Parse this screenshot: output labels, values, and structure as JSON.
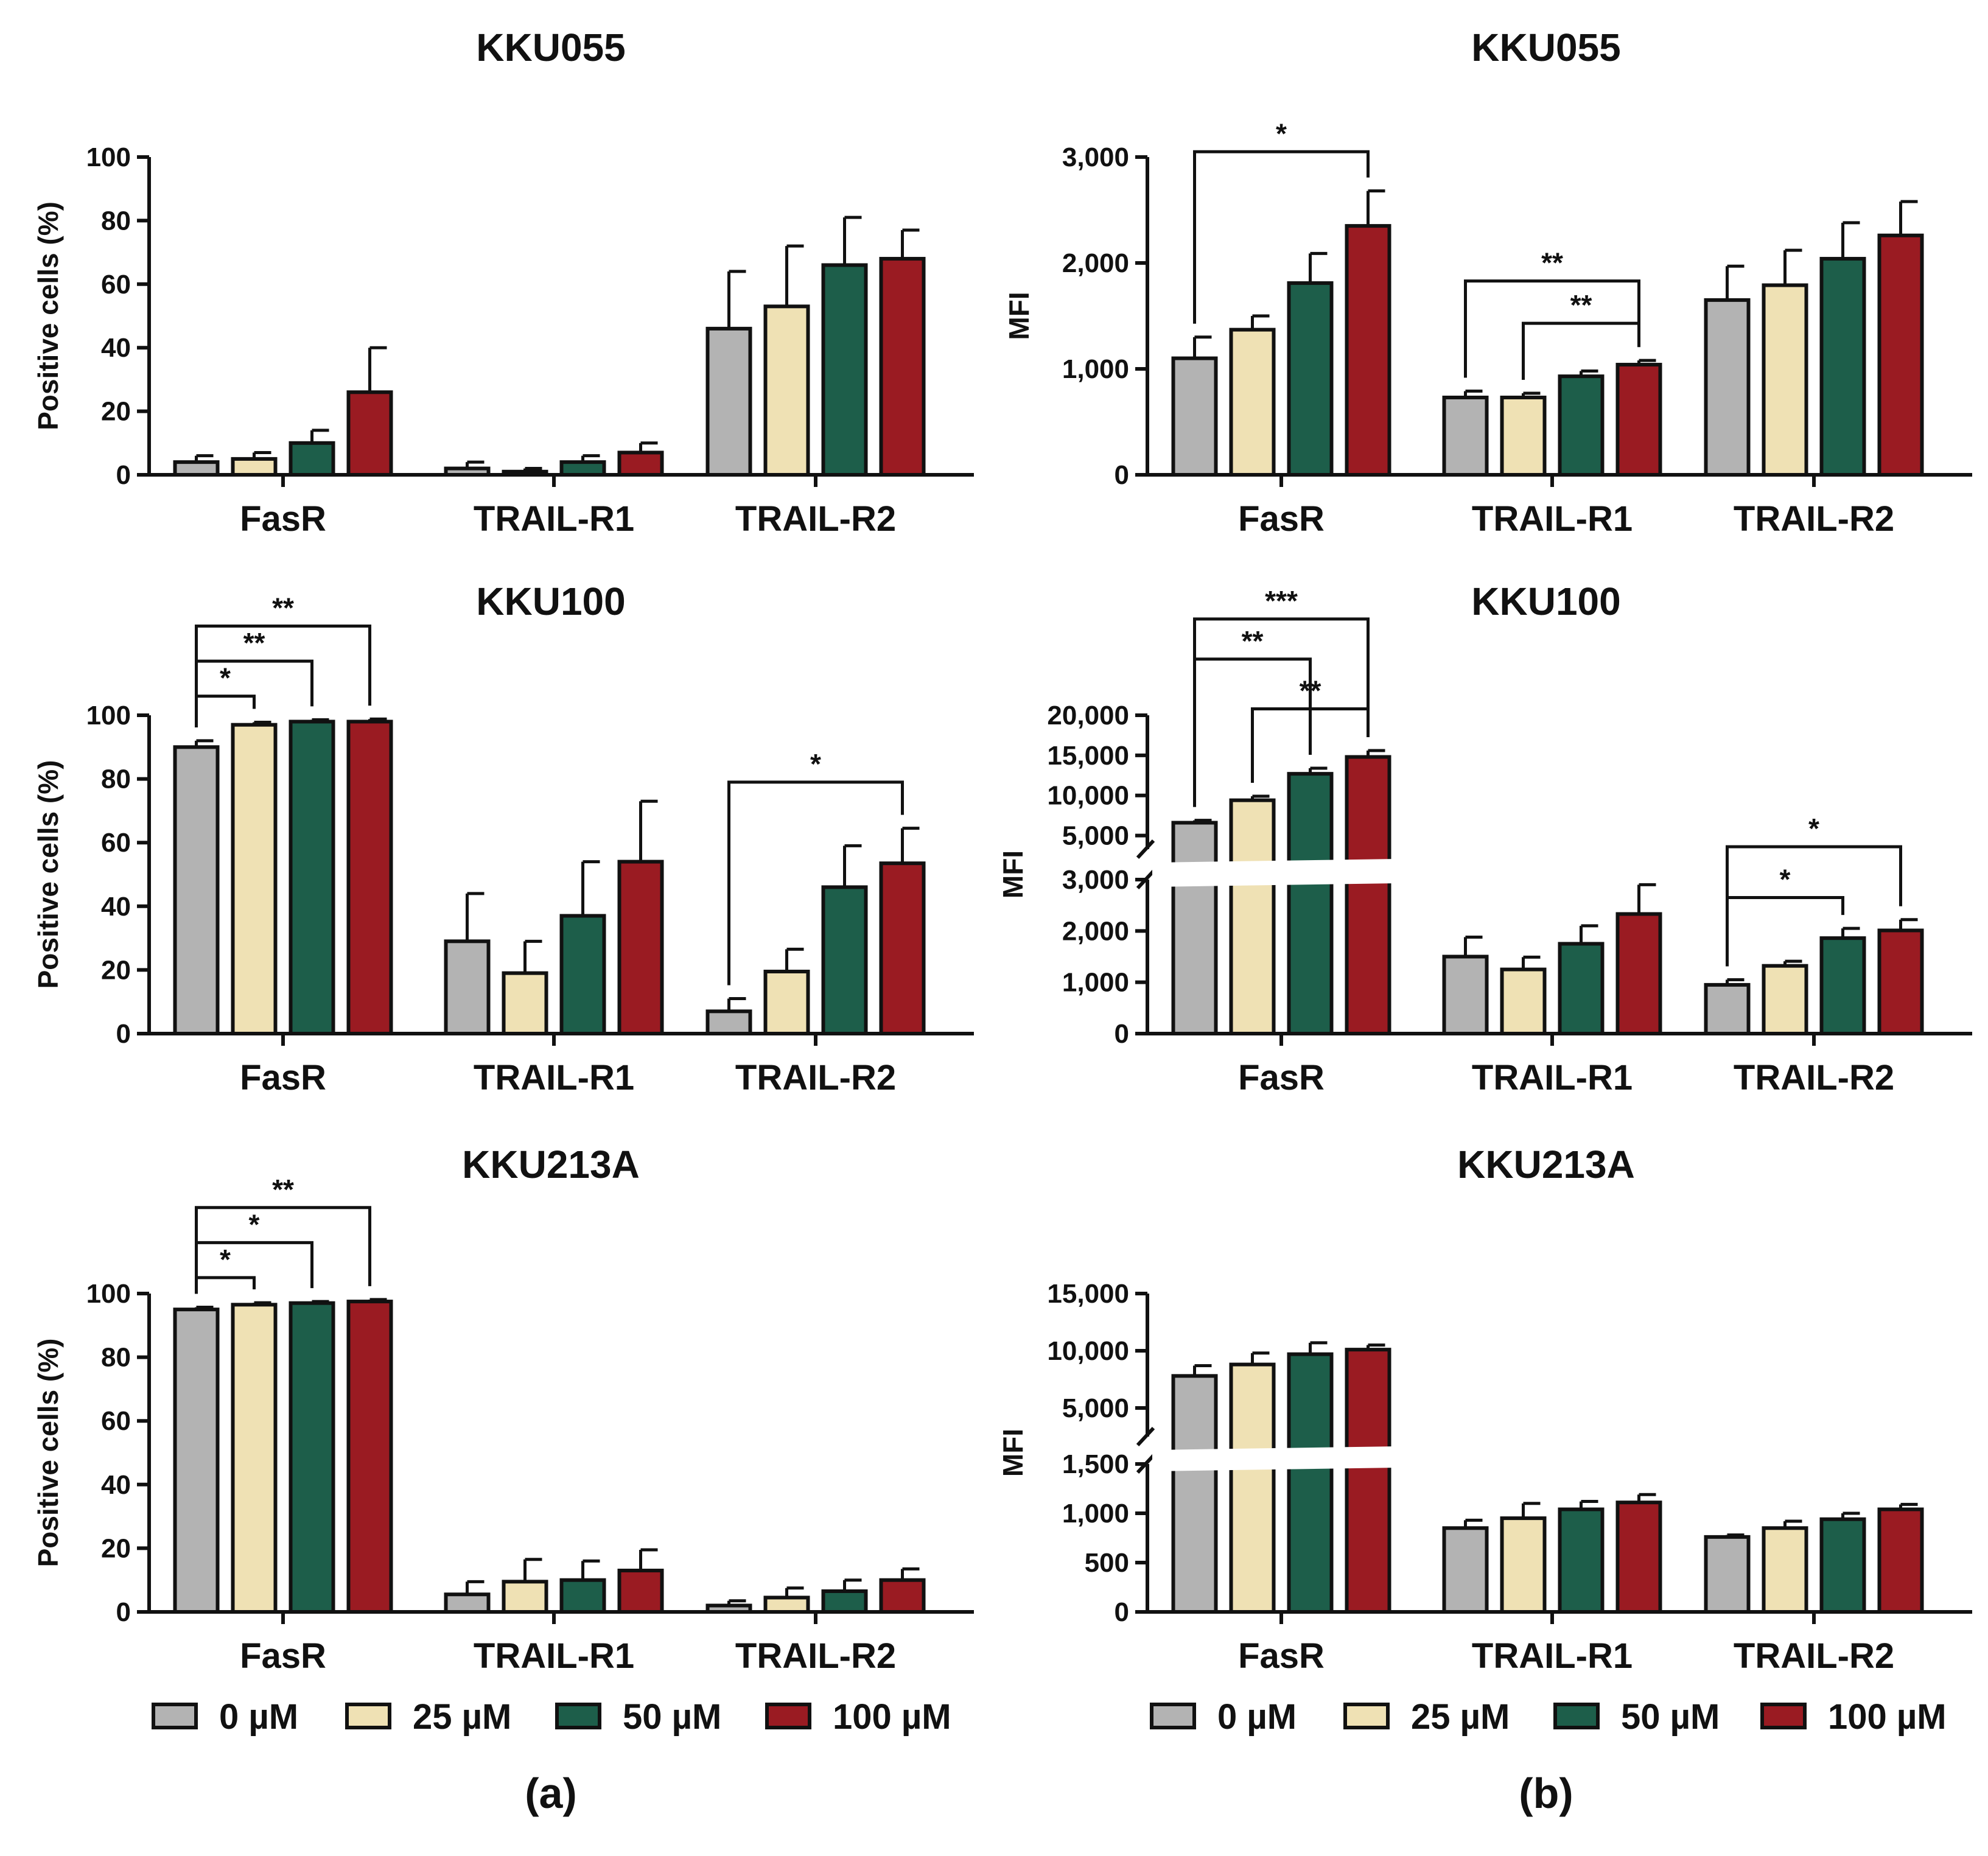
{
  "series": [
    {
      "name": "0 µM",
      "color": "#b3b3b3"
    },
    {
      "name": "25 µM",
      "color": "#efe1b4"
    },
    {
      "name": "50 µM",
      "color": "#1d5e4a"
    },
    {
      "name": "100 µM",
      "color": "#9a1b22"
    }
  ],
  "panel_labels": [
    "(a)",
    "(b)"
  ],
  "chart_data": [
    {
      "id": "a-kku055",
      "type": "bar",
      "title": "KKU055",
      "ylabel": "Positive cells (%)",
      "categories": [
        "FasR",
        "TRAIL-R1",
        "TRAIL-R2"
      ],
      "ylim": [
        0,
        100
      ],
      "yticks": [
        0,
        20,
        40,
        60,
        80,
        100
      ],
      "yticklabels": [
        "0",
        "20",
        "40",
        "60",
        "80",
        "100"
      ],
      "values": [
        [
          4,
          5,
          10,
          26
        ],
        [
          2,
          1,
          4,
          7
        ],
        [
          46,
          53,
          66,
          68
        ]
      ],
      "errors": [
        [
          2,
          2,
          4,
          14
        ],
        [
          2,
          1,
          2,
          3
        ],
        [
          18,
          19,
          15,
          9
        ]
      ],
      "significance": []
    },
    {
      "id": "a-kku100",
      "type": "bar",
      "title": "KKU100",
      "ylabel": "Positive cells (%)",
      "categories": [
        "FasR",
        "TRAIL-R1",
        "TRAIL-R2"
      ],
      "ylim": [
        0,
        100
      ],
      "yticks": [
        0,
        20,
        40,
        60,
        80,
        100
      ],
      "yticklabels": [
        "0",
        "20",
        "40",
        "60",
        "80",
        "100"
      ],
      "values": [
        [
          90,
          97,
          98,
          98
        ],
        [
          29,
          19,
          37,
          54
        ],
        [
          7,
          19.5,
          46,
          53.5
        ]
      ],
      "errors": [
        [
          2,
          0.8,
          0.6,
          0.8
        ],
        [
          15,
          10,
          17,
          19
        ],
        [
          4,
          7,
          13,
          11
        ]
      ],
      "significance": [
        {
          "cat": 0,
          "from": 0,
          "to": 1,
          "label": "*",
          "y": 106
        },
        {
          "cat": 0,
          "from": 0,
          "to": 2,
          "label": "**",
          "y": 117
        },
        {
          "cat": 0,
          "from": 0,
          "to": 3,
          "label": "**",
          "y": 128
        },
        {
          "cat": 2,
          "from": 0,
          "to": 3,
          "label": "*",
          "y": 79
        }
      ]
    },
    {
      "id": "a-kku213a",
      "type": "bar",
      "title": "KKU213A",
      "ylabel": "Positive cells (%)",
      "categories": [
        "FasR",
        "TRAIL-R1",
        "TRAIL-R2"
      ],
      "ylim": [
        0,
        100
      ],
      "yticks": [
        0,
        20,
        40,
        60,
        80,
        100
      ],
      "yticklabels": [
        "0",
        "20",
        "40",
        "60",
        "80",
        "100"
      ],
      "values": [
        [
          95,
          96.5,
          97,
          97.5
        ],
        [
          5.5,
          9.5,
          10,
          13
        ],
        [
          2,
          4.5,
          6.5,
          10
        ]
      ],
      "errors": [
        [
          0.7,
          0.6,
          0.5,
          0.6
        ],
        [
          4,
          7,
          6,
          6.5
        ],
        [
          1.5,
          3,
          3.5,
          3.5
        ]
      ],
      "significance": [
        {
          "cat": 0,
          "from": 0,
          "to": 1,
          "label": "*",
          "y": 105
        },
        {
          "cat": 0,
          "from": 0,
          "to": 2,
          "label": "*",
          "y": 116
        },
        {
          "cat": 0,
          "from": 0,
          "to": 3,
          "label": "**",
          "y": 127
        }
      ]
    },
    {
      "id": "b-kku055",
      "type": "bar",
      "title": "KKU055",
      "ylabel": "MFI",
      "categories": [
        "FasR",
        "TRAIL-R1",
        "TRAIL-R2"
      ],
      "ylim": [
        0,
        3000
      ],
      "yticks": [
        0,
        1000,
        2000,
        3000
      ],
      "yticklabels": [
        "0",
        "1,000",
        "2,000",
        "3,000"
      ],
      "values": [
        [
          1100,
          1370,
          1810,
          2350
        ],
        [
          730,
          730,
          930,
          1040
        ],
        [
          1650,
          1790,
          2040,
          2260
        ]
      ],
      "errors": [
        [
          200,
          130,
          280,
          330
        ],
        [
          60,
          40,
          50,
          40
        ],
        [
          320,
          330,
          340,
          320
        ]
      ],
      "significance": [
        {
          "cat": 0,
          "from": 0,
          "to": 3,
          "label": "*",
          "y": 3050
        },
        {
          "cat": 1,
          "from": 0,
          "to": 3,
          "label": "**",
          "y": 1830
        },
        {
          "cat": 1,
          "from": 1,
          "to": 3,
          "label": "**",
          "y": 1430
        }
      ]
    },
    {
      "id": "b-kku100",
      "type": "bar",
      "title": "KKU100",
      "ylabel": "MFI",
      "categories": [
        "FasR",
        "TRAIL-R1",
        "TRAIL-R2"
      ],
      "broken_axis": {
        "lower_max": 3000,
        "upper_min": 3300,
        "upper_max": 20000
      },
      "yticks_lower": [
        0,
        1000,
        2000,
        3000
      ],
      "yticklabels_lower": [
        "0",
        "1,000",
        "2,000",
        "3,000"
      ],
      "yticks_upper": [
        5000,
        10000,
        15000,
        20000
      ],
      "yticklabels_upper": [
        "5,000",
        "10,000",
        "15,000",
        "20,000"
      ],
      "values": [
        [
          6600,
          9400,
          12700,
          14800
        ],
        [
          1500,
          1250,
          1750,
          2330
        ],
        [
          950,
          1320,
          1860,
          2010
        ]
      ],
      "errors": [
        [
          300,
          500,
          700,
          800
        ],
        [
          380,
          240,
          350,
          570
        ],
        [
          100,
          90,
          190,
          210
        ]
      ],
      "significance": [
        {
          "cat": 0,
          "from": 0,
          "to": 2,
          "label": "**",
          "y": 27000
        },
        {
          "cat": 0,
          "from": 0,
          "to": 3,
          "label": "***",
          "y": 32000
        },
        {
          "cat": 0,
          "from": 1,
          "to": 3,
          "label": "**",
          "y": 20800
        },
        {
          "cat": 2,
          "from": 0,
          "to": 2,
          "label": "*",
          "y": 2650
        },
        {
          "cat": 2,
          "from": 0,
          "to": 3,
          "label": "*",
          "y": 3600
        }
      ]
    },
    {
      "id": "b-kku213a",
      "type": "bar",
      "title": "KKU213A",
      "ylabel": "MFI",
      "categories": [
        "FasR",
        "TRAIL-R1",
        "TRAIL-R2"
      ],
      "broken_axis": {
        "lower_max": 1500,
        "upper_min": 2500,
        "upper_max": 15000
      },
      "yticks_lower": [
        0,
        500,
        1000,
        1500
      ],
      "yticklabels_lower": [
        "0",
        "500",
        "1,000",
        "1,500"
      ],
      "yticks_upper": [
        5000,
        10000,
        15000
      ],
      "yticklabels_upper": [
        "5,000",
        "10,000",
        "15,000"
      ],
      "values": [
        [
          7800,
          8800,
          9700,
          10100
        ],
        [
          850,
          950,
          1040,
          1110
        ],
        [
          760,
          850,
          940,
          1040
        ]
      ],
      "errors": [
        [
          900,
          1000,
          1000,
          400
        ],
        [
          80,
          150,
          80,
          80
        ],
        [
          20,
          70,
          60,
          50
        ]
      ],
      "significance": []
    }
  ]
}
